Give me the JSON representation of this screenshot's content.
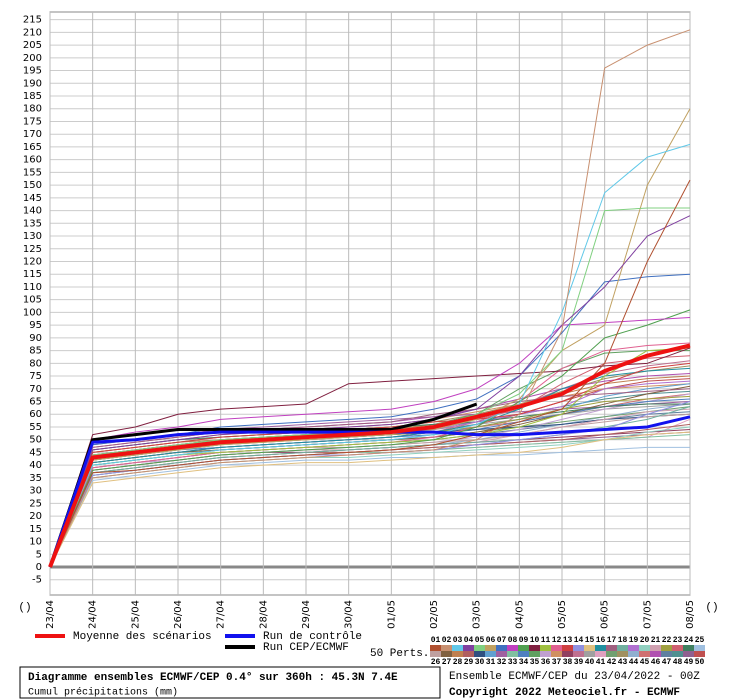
{
  "chart_data": {
    "type": "line",
    "title": "Diagramme ensembles ECMWF/CEP 0.4° sur 360h : 45.3N 7.4E",
    "subtitle": "Cumul précipitations (mm)",
    "annotations": [
      "Ensemble ECMWF/CEP du 23/04/2022 - 00Z",
      "Copyright 2022 Meteociel.fr - ECMWF",
      "50 Perts.",
      "()",
      "()"
    ],
    "categories": [
      "23/04",
      "24/04",
      "25/04",
      "26/04",
      "27/04",
      "28/04",
      "29/04",
      "30/04",
      "01/05",
      "02/05",
      "03/05",
      "04/05",
      "05/05",
      "06/05",
      "07/05",
      "08/05"
    ],
    "ylim": [
      -11,
      218
    ],
    "yticks": [
      -5,
      0,
      5,
      10,
      15,
      20,
      25,
      30,
      35,
      40,
      45,
      50,
      55,
      60,
      65,
      70,
      75,
      80,
      85,
      90,
      95,
      100,
      105,
      110,
      115,
      120,
      125,
      130,
      135,
      140,
      145,
      150,
      155,
      160,
      165,
      170,
      175,
      180,
      185,
      190,
      195,
      200,
      205,
      210,
      215
    ],
    "grid": true,
    "series": [
      {
        "name": "Moyenne des scénarios",
        "color": "#ee1111",
        "values": [
          0,
          43,
          45,
          47,
          49,
          50,
          51,
          52,
          53,
          55,
          59,
          63,
          68,
          77,
          83,
          87
        ]
      },
      {
        "name": "Run de contrôle",
        "color": "#1111ee",
        "values": [
          0,
          49,
          50,
          52,
          53,
          53,
          53,
          53,
          53,
          53,
          52,
          52,
          53,
          54,
          55,
          59
        ]
      },
      {
        "name": "Run CEP/ECMWF",
        "color": "#000000",
        "values": [
          0,
          50,
          52,
          54,
          54,
          54,
          54,
          54,
          54,
          58,
          64,
          null,
          null,
          null,
          null,
          null
        ]
      },
      {
        "name": "01",
        "color": "#b05030",
        "values": [
          0,
          37,
          38,
          40,
          42,
          43,
          44,
          45,
          46,
          48,
          52,
          57,
          62,
          80,
          120,
          152
        ]
      },
      {
        "name": "02",
        "color": "#c89070",
        "values": [
          0,
          35,
          37,
          39,
          41,
          42,
          43,
          44,
          45,
          46,
          50,
          60,
          93,
          196,
          205,
          211
        ]
      },
      {
        "name": "03",
        "color": "#60c8e8",
        "values": [
          0,
          40,
          42,
          44,
          46,
          47,
          48,
          49,
          50,
          52,
          56,
          64,
          100,
          147,
          161,
          166
        ]
      },
      {
        "name": "04",
        "color": "#8040a0",
        "values": [
          0,
          46,
          48,
          50,
          52,
          53,
          54,
          55,
          56,
          58,
          62,
          75,
          95,
          110,
          130,
          138
        ]
      },
      {
        "name": "05",
        "color": "#80d080",
        "values": [
          0,
          44,
          46,
          48,
          50,
          51,
          52,
          52,
          53,
          55,
          60,
          68,
          85,
          140,
          141,
          141
        ]
      },
      {
        "name": "06",
        "color": "#c0a060",
        "values": [
          0,
          42,
          44,
          46,
          48,
          49,
          50,
          51,
          52,
          54,
          58,
          66,
          85,
          95,
          150,
          180
        ]
      },
      {
        "name": "07",
        "color": "#4070c0",
        "values": [
          0,
          48,
          50,
          52,
          55,
          56,
          57,
          58,
          59,
          62,
          66,
          75,
          92,
          112,
          114,
          115
        ]
      },
      {
        "name": "08",
        "color": "#c040c0",
        "values": [
          0,
          50,
          53,
          55,
          58,
          59,
          60,
          61,
          62,
          65,
          70,
          80,
          95,
          96,
          97,
          98
        ]
      },
      {
        "name": "09",
        "color": "#50a050",
        "values": [
          0,
          38,
          40,
          42,
          44,
          45,
          46,
          47,
          48,
          50,
          55,
          65,
          75,
          90,
          95,
          101
        ]
      },
      {
        "name": "10",
        "color": "#802040",
        "values": [
          0,
          52,
          55,
          60,
          62,
          63,
          64,
          72,
          73,
          74,
          75,
          76,
          77,
          79,
          80,
          86
        ]
      },
      {
        "name": "11",
        "color": "#a0c040",
        "values": [
          0,
          40,
          42,
          44,
          45,
          46,
          47,
          48,
          49,
          50,
          52,
          55,
          60,
          75,
          85,
          86
        ]
      },
      {
        "name": "12",
        "color": "#e06090",
        "values": [
          0,
          39,
          41,
          43,
          45,
          46,
          47,
          48,
          49,
          51,
          55,
          65,
          78,
          85,
          87,
          88
        ]
      },
      {
        "name": "13",
        "color": "#d04040",
        "values": [
          0,
          45,
          47,
          49,
          51,
          52,
          53,
          54,
          55,
          57,
          58,
          60,
          65,
          72,
          78,
          80
        ]
      },
      {
        "name": "14",
        "color": "#9090e0",
        "values": [
          0,
          36,
          38,
          40,
          42,
          43,
          44,
          44,
          45,
          46,
          48,
          50,
          52,
          54,
          60,
          65
        ]
      },
      {
        "name": "15",
        "color": "#e0c080",
        "values": [
          0,
          33,
          35,
          37,
          39,
          40,
          41,
          41,
          42,
          43,
          44,
          45,
          47,
          50,
          52,
          53
        ]
      },
      {
        "name": "16",
        "color": "#2090a0",
        "values": [
          0,
          41,
          43,
          45,
          47,
          48,
          49,
          50,
          51,
          53,
          56,
          62,
          70,
          75,
          77,
          78
        ]
      },
      {
        "name": "17",
        "color": "#a06080",
        "values": [
          0,
          47,
          49,
          51,
          53,
          54,
          55,
          56,
          57,
          60,
          62,
          65,
          67,
          68,
          69,
          70
        ]
      },
      {
        "name": "18",
        "color": "#70b0a0",
        "values": [
          0,
          37,
          39,
          41,
          43,
          44,
          45,
          46,
          47,
          48,
          49,
          50,
          52,
          55,
          58,
          63
        ]
      },
      {
        "name": "19",
        "color": "#b070d0",
        "values": [
          0,
          43,
          45,
          47,
          49,
          50,
          51,
          52,
          53,
          54,
          57,
          60,
          63,
          70,
          72,
          73
        ]
      },
      {
        "name": "20",
        "color": "#90d0c0",
        "values": [
          0,
          35,
          37,
          39,
          41,
          42,
          43,
          43,
          44,
          45,
          46,
          47,
          48,
          50,
          53,
          55
        ]
      },
      {
        "name": "21",
        "color": "#d0a0b0",
        "values": [
          0,
          38,
          40,
          42,
          44,
          45,
          46,
          46,
          47,
          48,
          49,
          52,
          55,
          58,
          61,
          62
        ]
      },
      {
        "name": "22",
        "color": "#a0a040",
        "values": [
          0,
          42,
          44,
          46,
          48,
          49,
          50,
          51,
          52,
          53,
          55,
          58,
          62,
          65,
          66,
          67
        ]
      },
      {
        "name": "23",
        "color": "#d06070",
        "values": [
          0,
          44,
          46,
          48,
          49,
          50,
          51,
          52,
          53,
          55,
          58,
          62,
          72,
          80,
          82,
          83
        ]
      },
      {
        "name": "24",
        "color": "#408060",
        "values": [
          0,
          46,
          48,
          50,
          51,
          52,
          53,
          54,
          55,
          56,
          57,
          59,
          61,
          63,
          64,
          64
        ]
      },
      {
        "name": "25",
        "color": "#a0c0e0",
        "values": [
          0,
          34,
          36,
          38,
          40,
          41,
          42,
          42,
          43,
          43,
          44,
          44,
          45,
          46,
          47,
          47
        ]
      },
      {
        "name": "26",
        "color": "#c0a0a0",
        "values": [
          0,
          39,
          41,
          43,
          45,
          46,
          47,
          47,
          48,
          49,
          50,
          52,
          55,
          57,
          59,
          60
        ]
      },
      {
        "name": "27",
        "color": "#806040",
        "values": [
          0,
          41,
          43,
          45,
          46,
          47,
          48,
          49,
          50,
          51,
          53,
          56,
          60,
          64,
          68,
          71
        ]
      },
      {
        "name": "28",
        "color": "#c08050",
        "values": [
          0,
          45,
          47,
          49,
          50,
          51,
          52,
          53,
          54,
          56,
          59,
          63,
          68,
          72,
          74,
          75
        ]
      },
      {
        "name": "29",
        "color": "#b06060",
        "values": [
          0,
          37,
          39,
          41,
          43,
          44,
          45,
          45,
          46,
          47,
          48,
          49,
          50,
          52,
          54,
          56
        ]
      },
      {
        "name": "30",
        "color": "#305080",
        "values": [
          0,
          43,
          45,
          47,
          49,
          50,
          51,
          51,
          52,
          53,
          54,
          55,
          56,
          58,
          59,
          60
        ]
      },
      {
        "name": "31",
        "color": "#60a0d0",
        "values": [
          0,
          40,
          42,
          44,
          46,
          47,
          48,
          49,
          50,
          52,
          55,
          58,
          62,
          67,
          70,
          72
        ]
      },
      {
        "name": "32",
        "color": "#a060a0",
        "values": [
          0,
          48,
          50,
          52,
          54,
          55,
          56,
          57,
          58,
          59,
          60,
          61,
          62,
          63,
          64,
          65
        ]
      },
      {
        "name": "33",
        "color": "#80c0a0",
        "values": [
          0,
          36,
          38,
          40,
          42,
          43,
          44,
          45,
          45,
          46,
          47,
          48,
          49,
          50,
          51,
          52
        ]
      },
      {
        "name": "34",
        "color": "#5080c0",
        "values": [
          0,
          42,
          44,
          46,
          47,
          48,
          49,
          50,
          51,
          52,
          54,
          57,
          60,
          63,
          65,
          66
        ]
      },
      {
        "name": "35",
        "color": "#60a060",
        "values": [
          0,
          44,
          46,
          48,
          50,
          51,
          52,
          53,
          54,
          56,
          60,
          70,
          78,
          84,
          85,
          85
        ]
      },
      {
        "name": "36",
        "color": "#c0a0d0",
        "values": [
          0,
          39,
          41,
          42,
          44,
          45,
          46,
          47,
          48,
          49,
          51,
          54,
          58,
          62,
          65,
          68
        ]
      },
      {
        "name": "37",
        "color": "#d09060",
        "values": [
          0,
          46,
          48,
          50,
          52,
          53,
          54,
          55,
          56,
          58,
          61,
          64,
          67,
          70,
          71,
          72
        ]
      },
      {
        "name": "38",
        "color": "#904060",
        "values": [
          0,
          38,
          40,
          42,
          44,
          45,
          45,
          46,
          47,
          48,
          49,
          50,
          51,
          52,
          53,
          54
        ]
      },
      {
        "name": "39",
        "color": "#c07090",
        "values": [
          0,
          41,
          43,
          45,
          47,
          48,
          49,
          50,
          51,
          53,
          57,
          63,
          70,
          76,
          79,
          81
        ]
      },
      {
        "name": "40",
        "color": "#a0a0a0",
        "values": [
          0,
          43,
          45,
          47,
          49,
          50,
          51,
          52,
          53,
          54,
          56,
          58,
          60,
          62,
          63,
          64
        ]
      },
      {
        "name": "41",
        "color": "#e0a0c0",
        "values": [
          0,
          35,
          37,
          39,
          41,
          42,
          43,
          44,
          45,
          46,
          47,
          48,
          49,
          50,
          51,
          58
        ]
      },
      {
        "name": "42",
        "color": "#70a070",
        "values": [
          0,
          40,
          42,
          44,
          46,
          47,
          48,
          49,
          50,
          51,
          53,
          55,
          57,
          59,
          61,
          63
        ]
      },
      {
        "name": "43",
        "color": "#a09060",
        "values": [
          0,
          45,
          47,
          49,
          51,
          52,
          53,
          54,
          55,
          57,
          60,
          64,
          69,
          74,
          77,
          79
        ]
      },
      {
        "name": "44",
        "color": "#90b0d0",
        "values": [
          0,
          37,
          39,
          41,
          43,
          44,
          45,
          46,
          47,
          48,
          50,
          53,
          56,
          59,
          62,
          64
        ]
      },
      {
        "name": "45",
        "color": "#d07070",
        "values": [
          0,
          42,
          44,
          46,
          48,
          49,
          50,
          51,
          52,
          53,
          55,
          57,
          60,
          63,
          66,
          68
        ]
      },
      {
        "name": "46",
        "color": "#b050b0",
        "values": [
          0,
          47,
          49,
          51,
          53,
          54,
          55,
          56,
          57,
          59,
          62,
          66,
          70,
          73,
          75,
          76
        ]
      },
      {
        "name": "47",
        "color": "#6080a0",
        "values": [
          0,
          39,
          41,
          43,
          45,
          46,
          47,
          48,
          49,
          50,
          52,
          54,
          56,
          58,
          60,
          61
        ]
      },
      {
        "name": "48",
        "color": "#509090",
        "values": [
          0,
          44,
          46,
          48,
          50,
          51,
          52,
          53,
          54,
          55,
          57,
          60,
          63,
          66,
          68,
          69
        ]
      },
      {
        "name": "49",
        "color": "#906090",
        "values": [
          0,
          36,
          38,
          40,
          42,
          43,
          44,
          45,
          46,
          47,
          48,
          49,
          50,
          51,
          52,
          53
        ]
      },
      {
        "name": "50",
        "color": "#c05050",
        "values": [
          0,
          41,
          43,
          45,
          47,
          48,
          49,
          50,
          51,
          53,
          56,
          60,
          65,
          70,
          73,
          74
        ]
      }
    ]
  }
}
